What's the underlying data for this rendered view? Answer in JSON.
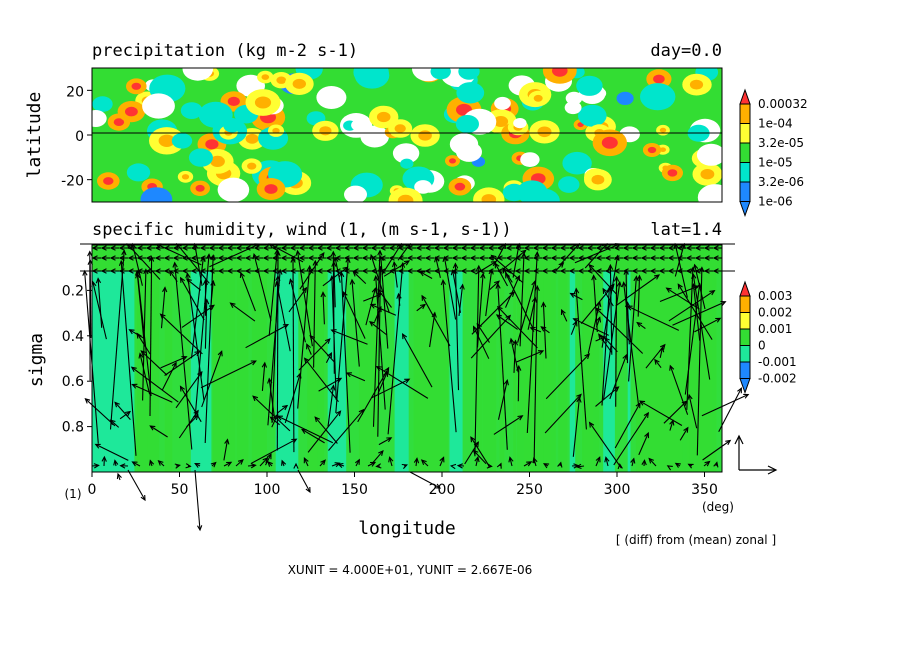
{
  "colors": {
    "blue": "#1e88ff",
    "cyan": "#00e5cc",
    "green": "#33dd33",
    "yellow": "#ffff33",
    "orange": "#ffb000",
    "red": "#ff3333",
    "white": "#ffffff",
    "teal": "#1ee89a"
  },
  "chart_data": [
    {
      "type": "heatmap",
      "title": "precipitation (kg m-2 s-1)",
      "title_right": "day=0.0",
      "ylabel": "latitude",
      "xlim": [
        0,
        360
      ],
      "ylim": [
        -30,
        30
      ],
      "y_ticks": [
        "20",
        "0",
        "-20"
      ],
      "y_tick_values": [
        20,
        0,
        -20
      ],
      "legend_levels": [
        "0.00032",
        "1e-04",
        "3.2e-05",
        "1e-05",
        "3.2e-06",
        "1e-06"
      ],
      "legend_colors": [
        "#ff3333",
        "#ffb000",
        "#ffff33",
        "#33dd33",
        "#00e5cc",
        "#1e88ff"
      ]
    },
    {
      "type": "heatmap",
      "title": "specific humidity, wind (1, (m s-1, s-1))",
      "title_right": "lat=1.4",
      "xlabel": "longitude",
      "ylabel": "sigma",
      "xlim": [
        0,
        360
      ],
      "ylim": [
        1.0,
        0.0
      ],
      "x_ticks": [
        "0",
        "50",
        "100",
        "150",
        "200",
        "250",
        "300",
        "350"
      ],
      "x_tick_values": [
        0,
        50,
        100,
        150,
        200,
        250,
        300,
        350
      ],
      "x_unit": "(deg)",
      "y_ticks": [
        "0.2",
        "0.4",
        "0.6",
        "0.8"
      ],
      "y_tick_values": [
        0.2,
        0.4,
        0.6,
        0.8
      ],
      "y_unit": "(1)",
      "legend_levels": [
        "0.003",
        "0.002",
        "0.001",
        "0",
        "-0.001",
        "-0.002"
      ],
      "legend_colors": [
        "#ff3333",
        "#ffb000",
        "#ffff33",
        "#33dd33",
        "#1ee89a",
        "#1e88ff"
      ],
      "note": "[ (diff) from (mean) zonal ]",
      "units_text": "XUNIT = 4.000E+01, YUNIT = 2.667E-06"
    }
  ]
}
